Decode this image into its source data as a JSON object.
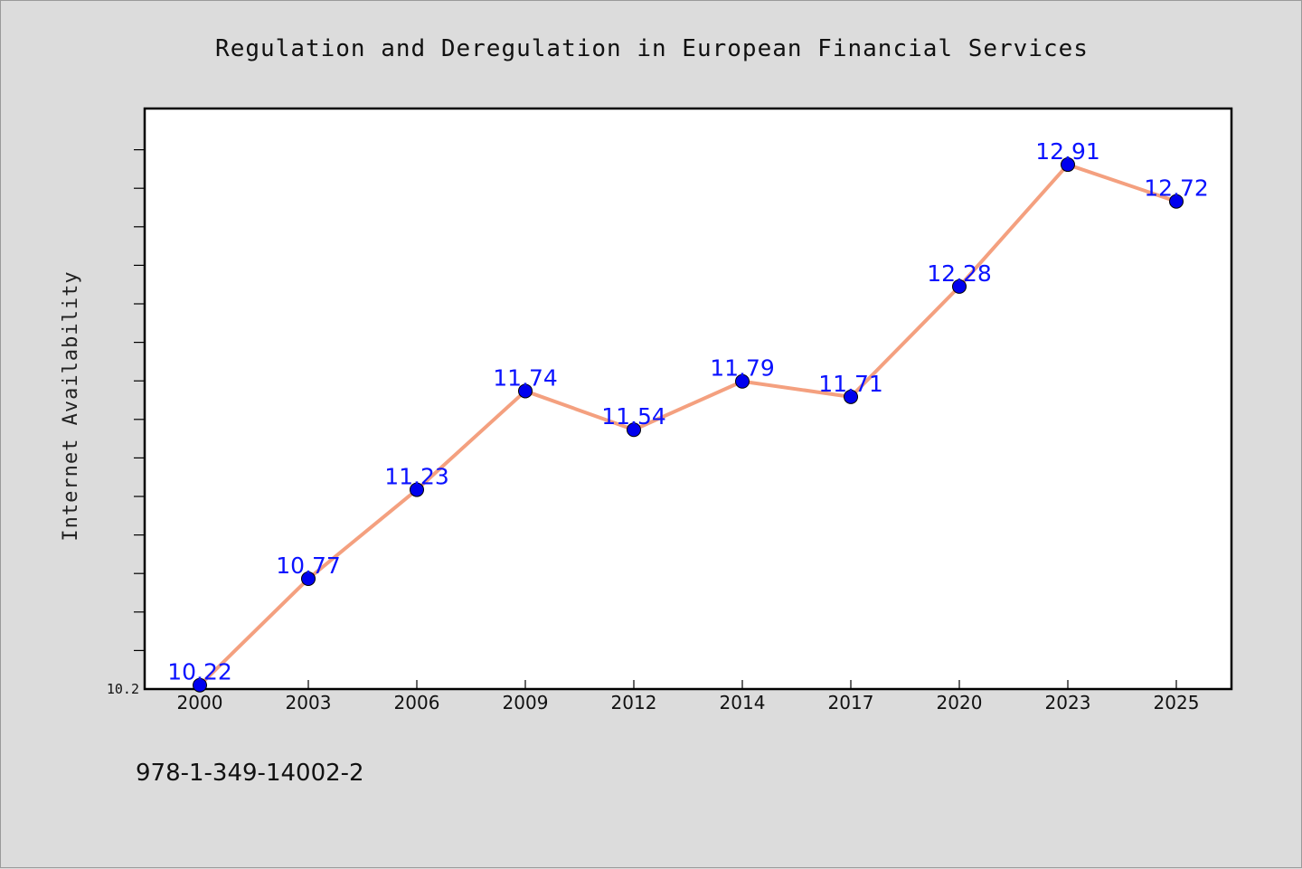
{
  "chart_data": {
    "type": "line",
    "title": "Regulation and Deregulation in European Financial Services",
    "xlabel": "",
    "ylabel": "Internet Availability",
    "categories": [
      "2000",
      "2003",
      "2006",
      "2009",
      "2012",
      "2014",
      "2017",
      "2020",
      "2023",
      "2025"
    ],
    "series": [
      {
        "values": [
          10.22,
          10.77,
          11.23,
          11.74,
          11.54,
          11.79,
          11.71,
          12.28,
          12.91,
          12.72
        ],
        "labels": [
          "10.22",
          "10.77",
          "11.23",
          "11.74",
          "11.54",
          "11.79",
          "11.71",
          "12.28",
          "12.91",
          "12.72"
        ],
        "line_color": "#f4a07f",
        "marker_color": "#0000ee"
      }
    ],
    "ylim": [
      10.2,
      13.2
    ],
    "y_tick_label": "10.2",
    "grid": false,
    "legend": "none"
  },
  "footer": {
    "isbn": "978-1-349-14002-2"
  },
  "colors": {
    "background": "#dcdcdc",
    "plot_background": "#ffffff",
    "axis": "#000000"
  }
}
